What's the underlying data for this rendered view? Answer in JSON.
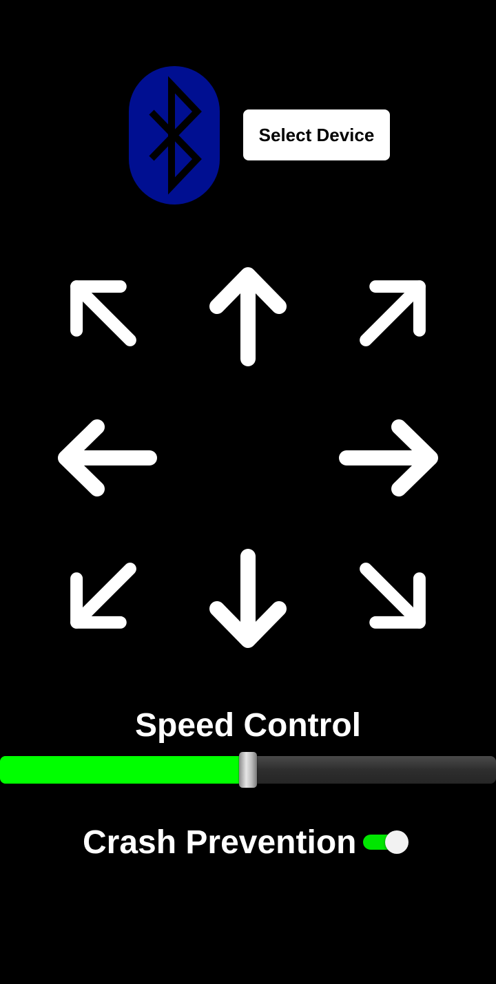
{
  "header": {
    "bluetooth_icon": "bluetooth-icon",
    "select_device_label": "Select Device"
  },
  "dpad": {
    "buttons": [
      {
        "name": "arrow-up-left-icon",
        "direction": "up-left"
      },
      {
        "name": "arrow-up-icon",
        "direction": "up"
      },
      {
        "name": "arrow-up-right-icon",
        "direction": "up-right"
      },
      {
        "name": "arrow-left-icon",
        "direction": "left"
      },
      {
        "name": "arrow-right-icon",
        "direction": "right"
      },
      {
        "name": "arrow-down-left-icon",
        "direction": "down-left"
      },
      {
        "name": "arrow-down-icon",
        "direction": "down"
      },
      {
        "name": "arrow-down-right-icon",
        "direction": "down-right"
      }
    ]
  },
  "speed": {
    "label": "Speed Control",
    "value_fraction": 0.5
  },
  "crash_prevention": {
    "label": "Crash Prevention",
    "enabled": true
  },
  "colors": {
    "background": "#000000",
    "bluetooth_badge": "#000f91",
    "slider_fill": "#00ff00",
    "toggle_on": "#00e600",
    "arrow": "#ffffff"
  }
}
